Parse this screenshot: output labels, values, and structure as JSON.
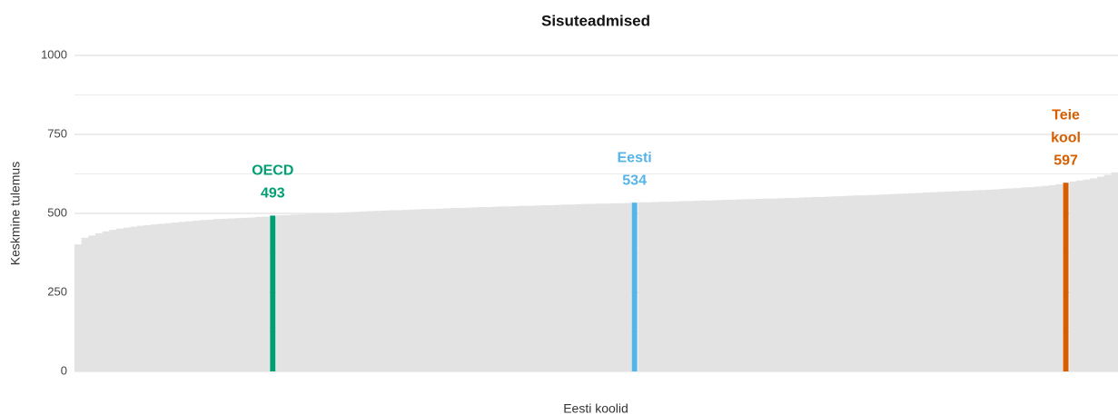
{
  "chart_data": {
    "type": "bar",
    "title": "Sisuteadmised",
    "x_label": "Eesti koolid",
    "y_label": "Keskmine tulemus",
    "color": "#e3e3e3",
    "values": [
      402,
      423,
      430,
      437,
      443,
      448,
      452,
      455,
      458,
      461,
      463,
      465,
      467,
      469,
      471,
      473,
      475,
      477,
      479,
      480,
      482,
      483,
      484,
      485,
      486,
      487,
      489,
      490,
      493,
      494,
      495,
      496,
      497,
      498,
      499,
      500,
      501,
      502,
      503,
      504,
      505,
      506,
      507,
      508,
      509,
      510,
      510,
      511,
      512,
      513,
      514,
      514,
      515,
      516,
      517,
      517,
      518,
      519,
      520,
      520,
      521,
      522,
      522,
      523,
      524,
      524,
      525,
      526,
      526,
      527,
      528,
      528,
      529,
      530,
      530,
      531,
      531,
      532,
      532,
      533,
      534,
      535,
      535,
      536,
      537,
      537,
      538,
      539,
      539,
      540,
      541,
      541,
      542,
      543,
      543,
      544,
      545,
      545,
      546,
      547,
      547,
      548,
      549,
      549,
      550,
      551,
      552,
      552,
      553,
      554,
      555,
      556,
      557,
      557,
      558,
      559,
      560,
      561,
      562,
      563,
      564,
      565,
      566,
      567,
      568,
      569,
      570,
      571,
      572,
      573,
      574,
      575,
      576,
      578,
      579,
      580,
      582,
      583,
      585,
      587,
      589,
      592,
      597,
      601,
      604,
      607,
      611,
      616,
      622,
      630
    ],
    "highlights": [
      {
        "index": 28,
        "label": [
          "OECD"
        ],
        "color": "#009e73"
      },
      {
        "index": 80,
        "label": [
          "Eesti"
        ],
        "color": "#56b4e9"
      },
      {
        "index": 142,
        "label": [
          "Teie",
          "kool"
        ],
        "color": "#d55e00"
      }
    ],
    "ylim": [
      0,
      1000
    ],
    "yticks": [
      0,
      250,
      500,
      750,
      1000
    ],
    "minor_yticks": [
      125,
      375,
      625,
      875
    ],
    "grid": true
  }
}
